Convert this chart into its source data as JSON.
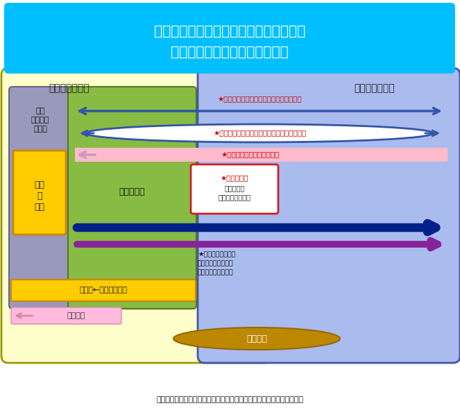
{
  "title_line1": "気象庁が推進する数値予報モデル開発に",
  "title_line2": "おける大学等研究機関との連携",
  "title_bg": "#00BFFF",
  "title_text_color": "#FFFFFF",
  "footer_text": "平成２９年７月２０日の第１回数値予報モデル開発懇談会資料から抜粋",
  "bg_color": "#FFFFFF",
  "left_box_color": "#FFFFCC",
  "left_box_border": "#999900",
  "right_box_color": "#AABBEE",
  "right_box_border": "#4455AA",
  "green_col_color": "#88BB44",
  "green_col_border": "#557722",
  "purple_left_color": "#9999BB",
  "purple_left_border": "#666688",
  "orange_box_color": "#FFCC00",
  "orange_box_border": "#CC8800",
  "label_kishocho": "気象庁（本庁）",
  "label_daigaku": "大学等研究機関",
  "label_gengyou": "現業\n数値予報\nモデル",
  "label_kaihatsu": "開発\nと\n運用",
  "label_kisho_kenkyusho": "気象研究所",
  "label_unyo": "運用　←　研究・開発",
  "label_kenkyuseika": "研究成果",
  "label_kyodokenkyu": "共同研究",
  "arrow1_text": "★定常的な意見交換の促進・信頼関係強化",
  "arrow2_text": "★相互にメリットのある研究課題の創出・創発",
  "arrow3_text": "★研究成果の知見の提供促進",
  "data_box_text1": "★データ提供",
  "data_box_text2": "（気象研究",
  "data_box_text3": "コンソーシアム）",
  "model_text1": "★モデル公開（貸与",
  "model_text2": "（数値予報研究開発",
  "model_text3": "プラットフォーム）",
  "arrow_color_blue_double": "#3355AA",
  "arrow_color_navy": "#002288",
  "arrow_color_purple": "#882299",
  "arrow_color_pink_bg": "#FFBBCC",
  "figsize": [
    6.63,
    5.88
  ],
  "dpi": 100
}
